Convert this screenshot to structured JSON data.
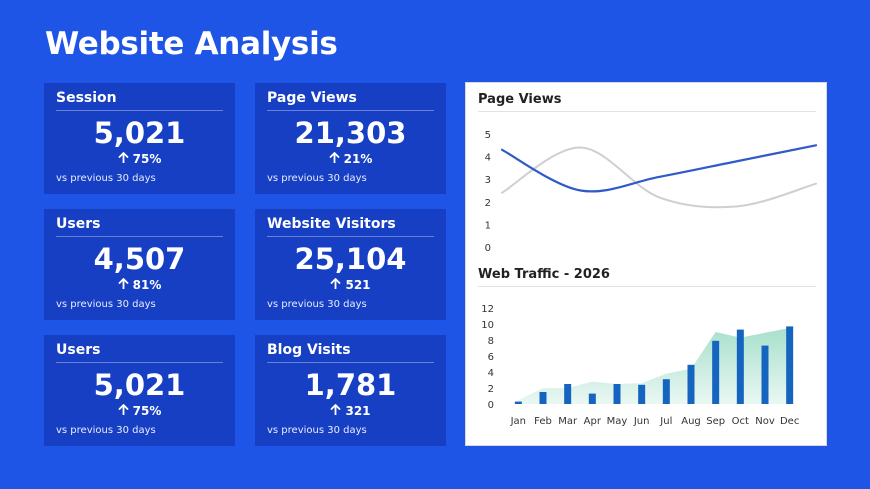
{
  "page": {
    "title": "Website Analysis"
  },
  "cards": [
    {
      "title": "Session",
      "value": "5,021",
      "delta": "75%",
      "footnote": "vs previous 30 days"
    },
    {
      "title": "Page Views",
      "value": "21,303",
      "delta": "21%",
      "footnote": "vs previous 30 days"
    },
    {
      "title": "Users",
      "value": "4,507",
      "delta": "81%",
      "footnote": "vs previous 30 days"
    },
    {
      "title": "Website Visitors",
      "value": "25,104",
      "delta": "521",
      "footnote": "vs previous 30 days"
    },
    {
      "title": "Users",
      "value": "5,021",
      "delta": "75%",
      "footnote": "vs previous 30 days"
    },
    {
      "title": "Blog Visits",
      "value": "1,781",
      "delta": "321",
      "footnote": "vs previous 30 days"
    }
  ],
  "icons": {
    "delta_arrow": "arrow-up-icon"
  },
  "colors": {
    "background": "#1f55e6",
    "card": "#173fc4",
    "line_primary": "#2f5bc9",
    "line_secondary": "#cfcfcf",
    "bar": "#1565c0",
    "area": "#a8e0cc"
  },
  "chart_data": [
    {
      "type": "line",
      "title": "Page Views",
      "ylim": [
        0,
        5
      ],
      "yticks": [
        "0",
        "1",
        "2",
        "3",
        "4",
        "5"
      ],
      "series": [
        {
          "values": [
            4.3,
            2.5,
            3.1,
            3.8,
            4.5
          ]
        },
        {
          "values": [
            2.4,
            4.4,
            2.2,
            1.8,
            2.8
          ]
        }
      ],
      "x": [
        0,
        1,
        2,
        3,
        4
      ],
      "legend": "none",
      "grid": false
    },
    {
      "type": "bar",
      "title": "Web Traffic  - 2026",
      "categories": [
        "Jan",
        "Feb",
        "Mar",
        "Apr",
        "May",
        "Jun",
        "Jul",
        "Aug",
        "Sep",
        "Oct",
        "Nov",
        "Dec"
      ],
      "ylim": [
        0,
        12
      ],
      "yticks": [
        "0",
        "2",
        "4",
        "6",
        "8",
        "10",
        "12"
      ],
      "series": [
        {
          "kind": "bar",
          "values": [
            0.3,
            1.5,
            2.5,
            1.3,
            2.5,
            2.4,
            3.1,
            4.9,
            7.9,
            9.3,
            7.3,
            9.7
          ]
        },
        {
          "kind": "area",
          "values": [
            0.5,
            2.0,
            2.0,
            2.8,
            2.5,
            2.6,
            3.8,
            4.4,
            9.0,
            8.3,
            8.9,
            9.5
          ]
        }
      ],
      "legend": "none",
      "grid": false
    }
  ]
}
